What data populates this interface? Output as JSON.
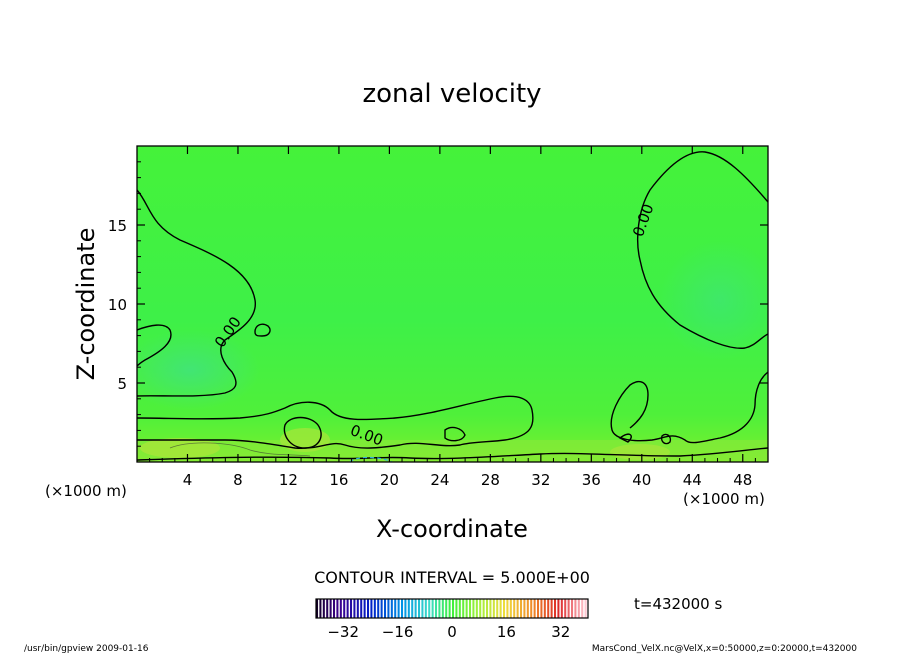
{
  "chart_data": {
    "type": "heatmap",
    "title": "zonal velocity",
    "xlabel": "X-coordinate",
    "ylabel": "Z-coordinate",
    "x_unit_left": "(×1000 m)",
    "x_unit_right": "(×1000 m)",
    "xlim": [
      0,
      50
    ],
    "ylim": [
      0,
      20
    ],
    "x_ticks": [
      4,
      8,
      12,
      16,
      20,
      24,
      28,
      32,
      36,
      40,
      44,
      48
    ],
    "y_ticks": [
      5,
      10,
      15
    ],
    "contour_interval_text": "CONTOUR INTERVAL = 5.000E+00",
    "contour_labels": [
      "0.00",
      "0.00",
      "0.00"
    ],
    "time_text": "t=432000 s",
    "colorbar": {
      "range": [
        -40,
        40
      ],
      "ticks": [
        -32,
        -16,
        0,
        16,
        32
      ]
    },
    "field_note": "near-zero velocity (green) everywhere; small positive (yellow) patches near the surface",
    "footer_left": "/usr/bin/gpview   2009-01-16",
    "footer_right": "MarsCond_VelX.nc@VelX,x=0:50000,z=0:20000,t=432000",
    "colors": {
      "field": "#3cf03c",
      "contour": "#000000"
    }
  }
}
